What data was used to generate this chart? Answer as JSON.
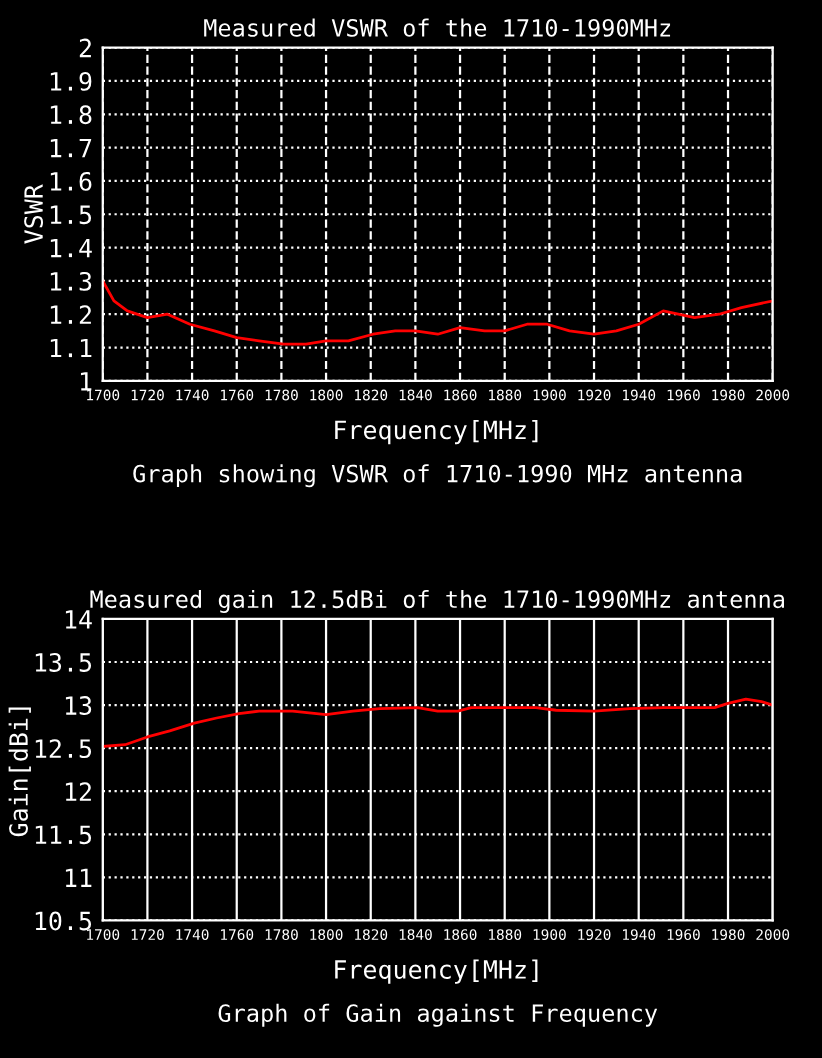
{
  "chart_data": [
    {
      "type": "line",
      "title": "Measured VSWR of the 1710-1990MHz",
      "xlabel": "Frequency[MHz]",
      "ylabel": "VSWR",
      "annotations": [
        "Graph showing VSWR of 1710-1990 MHz antenna"
      ],
      "series": [
        {
          "color": "#ff0000",
          "x": [
            1700,
            1705,
            1711,
            1720,
            1729,
            1739,
            1750,
            1760,
            1770,
            1781,
            1791,
            1800,
            1810,
            1821,
            1831,
            1840,
            1850,
            1860,
            1871,
            1880,
            1890,
            1899,
            1909,
            1920,
            1930,
            1940,
            1951,
            1965,
            1976,
            1986,
            2000
          ],
          "values": [
            1.3,
            1.24,
            1.21,
            1.19,
            1.2,
            1.17,
            1.15,
            1.13,
            1.12,
            1.11,
            1.11,
            1.12,
            1.12,
            1.14,
            1.15,
            1.15,
            1.14,
            1.16,
            1.15,
            1.15,
            1.17,
            1.17,
            1.15,
            1.14,
            1.15,
            1.17,
            1.21,
            1.19,
            1.2,
            1.22,
            1.24
          ]
        }
      ],
      "xlim": [
        1700,
        2000
      ],
      "xticks": [
        1700,
        1720,
        1740,
        1760,
        1780,
        1800,
        1820,
        1840,
        1860,
        1880,
        1900,
        1920,
        1940,
        1960,
        1980,
        2000
      ],
      "ylim": [
        1,
        2
      ],
      "yticks": [
        1,
        1.1,
        1.2,
        1.3,
        1.4,
        1.5,
        1.6,
        1.7,
        1.8,
        1.9,
        2
      ],
      "grid": true,
      "line_style": "solid",
      "marker": "none"
    },
    {
      "type": "line",
      "title": "Measured gain 12.5dBi of the 1710-1990MHz antenna",
      "xlabel": "Frequency[MHz]",
      "ylabel": "Gain[dBi]",
      "annotations": [
        "Graph of Gain against Frequency"
      ],
      "series": [
        {
          "color": "#ff0000",
          "x": [
            1700,
            1710,
            1720,
            1730,
            1741,
            1751,
            1761,
            1770,
            1785,
            1800,
            1812,
            1824,
            1841,
            1850,
            1859,
            1865,
            1894,
            1903,
            1920,
            1936,
            1951,
            1974,
            1980,
            1988,
            1995,
            2000
          ],
          "values": [
            12.52,
            12.54,
            12.63,
            12.7,
            12.79,
            12.85,
            12.9,
            12.93,
            12.93,
            12.89,
            12.93,
            12.96,
            12.97,
            12.93,
            12.93,
            12.97,
            12.97,
            12.94,
            12.93,
            12.96,
            12.97,
            12.97,
            13.02,
            13.07,
            13.04,
            13.0
          ]
        }
      ],
      "xlim": [
        1700,
        2000
      ],
      "xticks": [
        1700,
        1720,
        1740,
        1760,
        1780,
        1800,
        1820,
        1840,
        1860,
        1880,
        1900,
        1920,
        1940,
        1960,
        1980,
        2000
      ],
      "ylim": [
        10.5,
        14
      ],
      "yticks": [
        10.5,
        11,
        11.5,
        12,
        12.5,
        13,
        13.5,
        14
      ],
      "grid": true,
      "line_style": "solid",
      "marker": "none"
    }
  ]
}
